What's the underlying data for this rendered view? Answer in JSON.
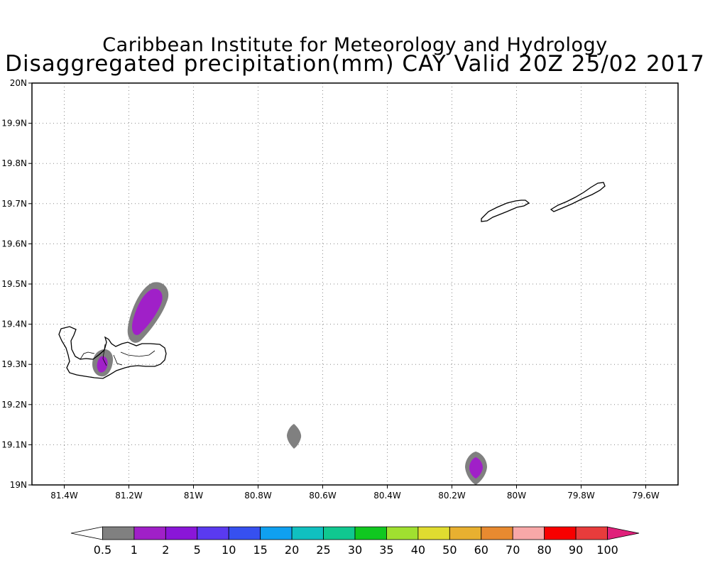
{
  "title": {
    "line1": "Caribbean Institute for Meteorology and Hydrology",
    "line2": "Disaggregated precipitation(mm) CAY Valid 20Z 25/02 2017"
  },
  "map": {
    "lon_range": [
      -81.5,
      -79.5
    ],
    "lat_range": [
      19.0,
      20.0
    ],
    "grid": "dotted",
    "x_ticks": [
      {
        "value": -81.4,
        "label": "81.4W"
      },
      {
        "value": -81.2,
        "label": "81.2W"
      },
      {
        "value": -81.0,
        "label": "81W"
      },
      {
        "value": -80.8,
        "label": "80.8W"
      },
      {
        "value": -80.6,
        "label": "80.6W"
      },
      {
        "value": -80.4,
        "label": "80.4W"
      },
      {
        "value": -80.2,
        "label": "80.2W"
      },
      {
        "value": -80.0,
        "label": "80W"
      },
      {
        "value": -79.8,
        "label": "79.8W"
      },
      {
        "value": -79.6,
        "label": "79.6W"
      }
    ],
    "y_ticks": [
      {
        "value": 19.0,
        "label": "19N"
      },
      {
        "value": 19.1,
        "label": "19.1N"
      },
      {
        "value": 19.2,
        "label": "19.2N"
      },
      {
        "value": 19.3,
        "label": "19.3N"
      },
      {
        "value": 19.4,
        "label": "19.4N"
      },
      {
        "value": 19.5,
        "label": "19.5N"
      },
      {
        "value": 19.6,
        "label": "19.6N"
      },
      {
        "value": 19.7,
        "label": "19.7N"
      },
      {
        "value": 19.8,
        "label": "19.8N"
      },
      {
        "value": 19.9,
        "label": "19.9N"
      },
      {
        "value": 20.0,
        "label": "20N"
      }
    ]
  },
  "colorbar": {
    "thresholds": [
      "0.5",
      "1",
      "2",
      "5",
      "10",
      "15",
      "20",
      "25",
      "30",
      "35",
      "40",
      "50",
      "60",
      "70",
      "80",
      "90",
      "100"
    ],
    "colors": [
      "#ffffff",
      "#808080",
      "#a020c8",
      "#8a16d8",
      "#5a3af0",
      "#3650f0",
      "#0fa0f0",
      "#10c0c0",
      "#10c890",
      "#10c820",
      "#a0e030",
      "#e0dc30",
      "#e8b030",
      "#e88a30",
      "#f8a8a8",
      "#f80000",
      "#e83c3c",
      "#e0207a"
    ]
  },
  "precip_areas": [
    {
      "name": "precip-gray-north-grand-cayman",
      "lon": -81.15,
      "lat": 19.43,
      "intensity_mm": "0.5-1"
    },
    {
      "name": "precip-purple-north-grand-cayman",
      "lon": -81.15,
      "lat": 19.43,
      "intensity_mm": "1-2"
    },
    {
      "name": "precip-gray-west-bay",
      "lon": -81.28,
      "lat": 19.3,
      "intensity_mm": "0.5-1"
    },
    {
      "name": "precip-purple-west-bay",
      "lon": -81.28,
      "lat": 19.3,
      "intensity_mm": "1-2"
    },
    {
      "name": "precip-gray-south-central",
      "lon": -80.69,
      "lat": 19.12,
      "intensity_mm": "0.5-1"
    },
    {
      "name": "precip-gray-southeast",
      "lon": -80.12,
      "lat": 19.045,
      "intensity_mm": "0.5-1"
    },
    {
      "name": "precip-purple-southeast",
      "lon": -80.12,
      "lat": 19.045,
      "intensity_mm": "1-2"
    }
  ]
}
